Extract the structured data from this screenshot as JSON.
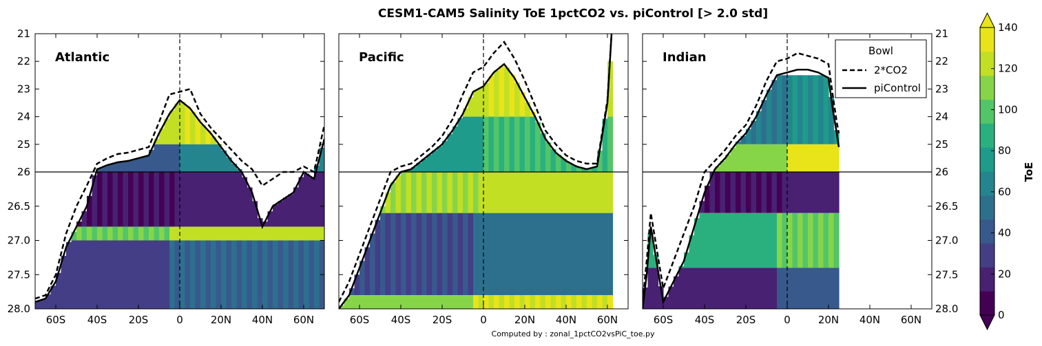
{
  "title": "CESM1-CAM5 Salinity ToE 1pctCO2 vs. piControl [> 2.0 std]",
  "footer": "Computed by : zonal_1pctCO2vsPiC_toe.py",
  "chart_data": {
    "type": "heatmap",
    "title": "CESM1-CAM5 Salinity ToE 1pctCO2 vs. piControl [> 2.0 std]",
    "x_ticks": [
      "60S",
      "40S",
      "20S",
      "0",
      "20N",
      "40N",
      "60N"
    ],
    "x_tick_values": [
      -60,
      -40,
      -20,
      0,
      20,
      40,
      60
    ],
    "xlim": [
      -70,
      70
    ],
    "y_ticks_upper": [
      "21",
      "22",
      "23",
      "24",
      "25",
      "26"
    ],
    "y_ticks_lower": [
      "26.5",
      "27.0",
      "27.5",
      "28.0"
    ],
    "ylim_upper": [
      21,
      26
    ],
    "ylim_lower": [
      26,
      28
    ],
    "colorbar": {
      "label": "ToE",
      "ticks": [
        "0",
        "20",
        "40",
        "60",
        "80",
        "100",
        "120",
        "140"
      ],
      "tick_values": [
        0,
        20,
        40,
        60,
        80,
        100,
        120,
        140
      ],
      "range": [
        0,
        140
      ],
      "extend": "both",
      "colors": [
        "#440154",
        "#482173",
        "#433e85",
        "#38598c",
        "#2d708e",
        "#25858e",
        "#1e9b8a",
        "#2ab07f",
        "#52c569",
        "#86d549",
        "#c2df23",
        "#e8e419"
      ]
    },
    "legend": {
      "title": "Bowl",
      "location": "upper-right",
      "entries": [
        {
          "label": "2*CO2",
          "style": "dashed"
        },
        {
          "label": "piControl",
          "style": "solid"
        }
      ]
    },
    "panels": [
      {
        "name": "Atlantic",
        "bowl_piControl": {
          "lat": [
            -70,
            -65,
            -60,
            -55,
            -50,
            -45,
            -40,
            -35,
            -30,
            -25,
            -20,
            -15,
            -10,
            -5,
            0,
            5,
            10,
            15,
            20,
            25,
            30,
            35,
            40,
            45,
            50,
            55,
            60,
            65,
            70
          ],
          "sigma": [
            27.9,
            27.85,
            27.6,
            27.1,
            26.8,
            26.5,
            25.9,
            25.75,
            25.65,
            25.6,
            25.5,
            25.4,
            24.6,
            23.9,
            23.4,
            23.7,
            24.2,
            24.6,
            25.1,
            25.6,
            26.0,
            26.3,
            26.8,
            26.5,
            26.4,
            26.3,
            26.0,
            26.1,
            24.8
          ]
        },
        "bowl_2CO2": {
          "lat": [
            -70,
            -65,
            -60,
            -55,
            -50,
            -45,
            -40,
            -35,
            -30,
            -25,
            -20,
            -15,
            -10,
            -5,
            0,
            5,
            10,
            15,
            20,
            25,
            30,
            35,
            40,
            45,
            50,
            55,
            60,
            65,
            70
          ],
          "sigma": [
            27.85,
            27.8,
            27.5,
            26.9,
            26.5,
            26.2,
            25.7,
            25.5,
            25.35,
            25.3,
            25.2,
            25.1,
            24.2,
            23.2,
            23.1,
            23.0,
            23.9,
            24.4,
            24.8,
            25.2,
            25.6,
            25.9,
            26.2,
            26.1,
            26.0,
            26.0,
            25.8,
            26.0,
            24.3
          ]
        },
        "dominant_toe_by_layer": [
          {
            "sigma_range": [
              23.0,
              25.0
            ],
            "toe": 130
          },
          {
            "sigma_range": [
              25.0,
              26.0
            ],
            "toe": 60
          },
          {
            "sigma_range": [
              26.0,
              26.8
            ],
            "toe": 20
          },
          {
            "sigma_range": [
              26.8,
              27.0
            ],
            "toe": 120
          },
          {
            "sigma_range": [
              27.0,
              28.0
            ],
            "toe": 50
          }
        ]
      },
      {
        "name": "Pacific",
        "bowl_piControl": {
          "lat": [
            -70,
            -65,
            -60,
            -55,
            -50,
            -45,
            -40,
            -35,
            -30,
            -25,
            -20,
            -15,
            -10,
            -5,
            0,
            5,
            10,
            15,
            20,
            25,
            30,
            35,
            40,
            45,
            50,
            55,
            60,
            62
          ],
          "sigma": [
            28.0,
            27.8,
            27.4,
            27.0,
            26.6,
            26.2,
            26.0,
            25.9,
            25.6,
            25.3,
            25.0,
            24.5,
            23.9,
            23.1,
            22.9,
            22.4,
            22.1,
            22.6,
            23.3,
            24.0,
            24.8,
            25.3,
            25.6,
            25.8,
            25.9,
            25.8,
            23.5,
            21.0
          ]
        },
        "bowl_2CO2": {
          "lat": [
            -70,
            -65,
            -60,
            -55,
            -50,
            -45,
            -40,
            -35,
            -30,
            -25,
            -20,
            -15,
            -10,
            -5,
            0,
            5,
            10,
            15,
            20,
            25,
            30,
            35,
            40,
            45,
            50,
            55,
            60,
            62
          ],
          "sigma": [
            27.9,
            27.6,
            27.2,
            26.8,
            26.4,
            26.0,
            25.8,
            25.7,
            25.4,
            25.1,
            24.7,
            24.1,
            23.2,
            22.4,
            22.2,
            21.7,
            21.3,
            21.9,
            22.7,
            23.6,
            24.5,
            25.0,
            25.4,
            25.6,
            25.7,
            25.7,
            23.4,
            21.0
          ]
        },
        "dominant_toe_by_layer": [
          {
            "sigma_range": [
              22.0,
              24.0
            ],
            "toe": 130
          },
          {
            "sigma_range": [
              24.0,
              26.0
            ],
            "toe": 90
          },
          {
            "sigma_range": [
              26.0,
              26.6
            ],
            "toe": 130
          },
          {
            "sigma_range": [
              26.6,
              27.8
            ],
            "toe": 50
          },
          {
            "sigma_range": [
              27.8,
              28.0
            ],
            "toe": 130
          }
        ]
      },
      {
        "name": "Indian",
        "bowl_piControl": {
          "lat": [
            -70,
            -68,
            -66,
            -60,
            -55,
            -50,
            -45,
            -40,
            -35,
            -30,
            -25,
            -20,
            -15,
            -10,
            -5,
            0,
            5,
            10,
            15,
            20,
            22,
            24,
            25
          ],
          "sigma": [
            28.0,
            27.5,
            26.8,
            27.9,
            27.6,
            27.3,
            26.8,
            26.3,
            25.9,
            25.5,
            25.0,
            24.6,
            24.0,
            23.2,
            22.5,
            22.4,
            22.3,
            22.3,
            22.4,
            22.6,
            23.7,
            24.6,
            25.1
          ]
        },
        "bowl_2CO2": {
          "lat": [
            -70,
            -68,
            -66,
            -60,
            -55,
            -50,
            -45,
            -40,
            -35,
            -30,
            -25,
            -20,
            -15,
            -10,
            -5,
            0,
            5,
            10,
            15,
            20,
            22,
            24,
            25
          ],
          "sigma": [
            27.9,
            27.3,
            26.6,
            27.7,
            27.3,
            26.9,
            26.5,
            26.0,
            25.6,
            25.2,
            24.7,
            24.3,
            23.6,
            22.7,
            22.0,
            21.9,
            21.7,
            21.8,
            21.9,
            22.1,
            23.2,
            24.2,
            24.6
          ]
        },
        "dominant_toe_by_layer": [
          {
            "sigma_range": [
              22.5,
              25.0
            ],
            "toe": 70
          },
          {
            "sigma_range": [
              25.0,
              26.0
            ],
            "toe": 130
          },
          {
            "sigma_range": [
              26.0,
              26.6
            ],
            "toe": 20
          },
          {
            "sigma_range": [
              26.6,
              27.4
            ],
            "toe": 100
          },
          {
            "sigma_range": [
              27.4,
              28.0
            ],
            "toe": 40
          }
        ]
      }
    ]
  }
}
